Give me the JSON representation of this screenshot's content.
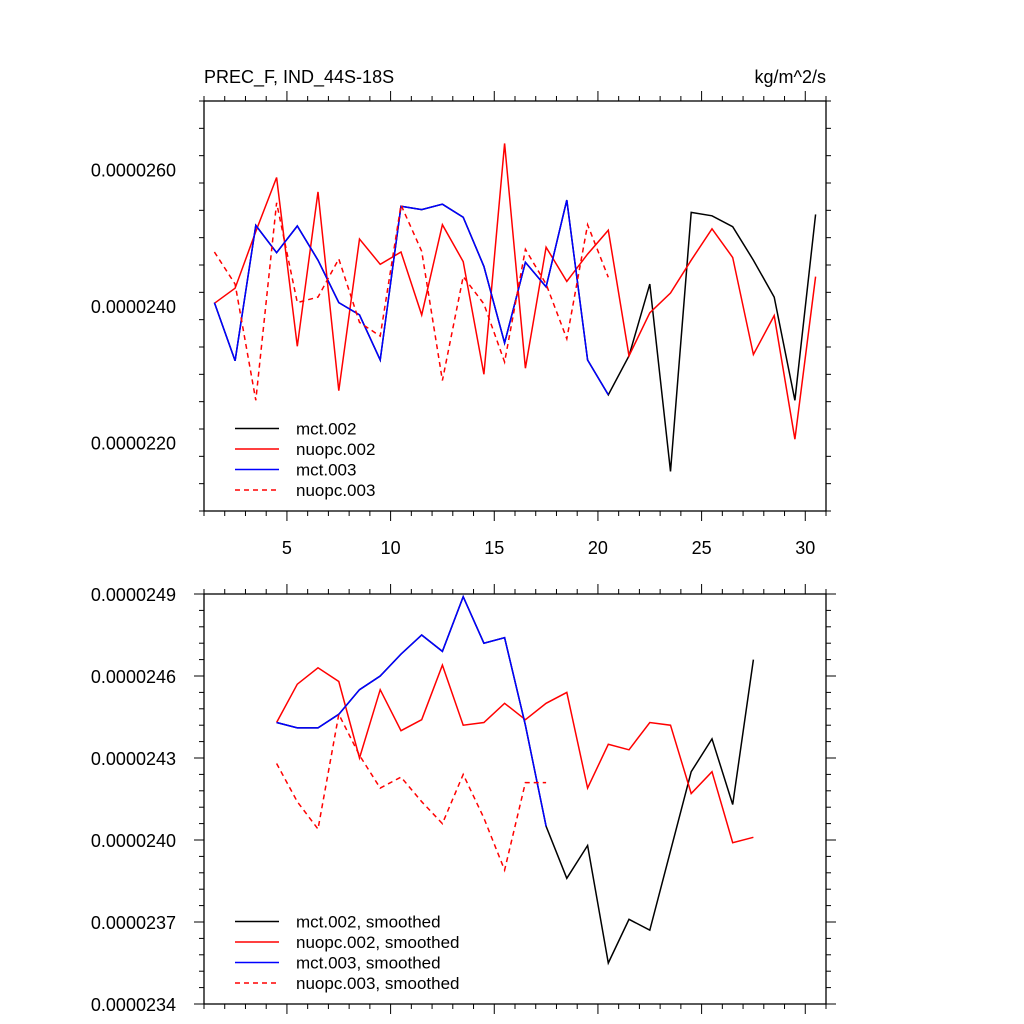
{
  "chart_data": [
    {
      "type": "line",
      "title_left": "PREC_F, IND_44S-18S",
      "title_right": "kg/m^2/s",
      "xlabel": "",
      "ylabel": "",
      "xlim": [
        1,
        31
      ],
      "ylim": [
        2.1e-05,
        2.7e-05
      ],
      "x_ticks": [
        5,
        10,
        15,
        20,
        25,
        30
      ],
      "x_tick_labels": [
        "5",
        "10",
        "15",
        "20",
        "25",
        "30"
      ],
      "y_ticks": [
        2.2e-05,
        2.4e-05,
        2.6e-05
      ],
      "y_tick_labels": [
        "0.0000220",
        "0.0000240",
        "0.0000260"
      ],
      "legend_position": "bottom-left",
      "series": [
        {
          "name": "mct.002",
          "color": "#000000",
          "dash": "solid",
          "x": [
            1.5,
            2.5,
            3.5,
            4.5,
            5.5,
            6.5,
            7.5,
            8.5,
            9.5,
            10.5,
            11.5,
            12.5,
            13.5,
            14.5,
            15.5,
            16.5,
            17.5,
            18.5,
            19.5,
            20.5,
            21.5,
            22.5,
            23.5,
            24.5,
            25.5,
            26.5,
            27.5,
            28.5,
            29.5,
            30.5
          ],
          "values": [
            2.405e-05,
            2.32e-05,
            2.518e-05,
            2.478e-05,
            2.517e-05,
            2.467e-05,
            2.405e-05,
            2.387e-05,
            2.321e-05,
            2.546e-05,
            2.541e-05,
            2.549e-05,
            2.53e-05,
            2.458e-05,
            2.346e-05,
            2.464e-05,
            2.428e-05,
            2.555e-05,
            2.321e-05,
            2.27e-05,
            2.327e-05,
            2.432e-05,
            2.158e-05,
            2.537e-05,
            2.532e-05,
            2.516e-05,
            2.467e-05,
            2.413e-05,
            2.262e-05,
            2.534e-05
          ]
        },
        {
          "name": "nuopc.002",
          "color": "#ff0000",
          "dash": "solid",
          "x": [
            1.5,
            2.5,
            3.5,
            4.5,
            5.5,
            6.5,
            7.5,
            8.5,
            9.5,
            10.5,
            11.5,
            12.5,
            13.5,
            14.5,
            15.5,
            16.5,
            17.5,
            18.5,
            19.5,
            20.5,
            21.5,
            22.5,
            23.5,
            24.5,
            25.5,
            26.5,
            27.5,
            28.5,
            29.5,
            30.5
          ],
          "values": [
            2.404e-05,
            2.426e-05,
            2.509e-05,
            2.588e-05,
            2.341e-05,
            2.567e-05,
            2.276e-05,
            2.498e-05,
            2.461e-05,
            2.479e-05,
            2.387e-05,
            2.519e-05,
            2.465e-05,
            2.3e-05,
            2.638e-05,
            2.309e-05,
            2.486e-05,
            2.436e-05,
            2.476e-05,
            2.511e-05,
            2.327e-05,
            2.39e-05,
            2.419e-05,
            2.467e-05,
            2.513e-05,
            2.471e-05,
            2.329e-05,
            2.386e-05,
            2.205e-05,
            2.443e-05
          ]
        },
        {
          "name": "mct.003",
          "color": "#0000ff",
          "dash": "solid",
          "x": [
            1.5,
            2.5,
            3.5,
            4.5,
            5.5,
            6.5,
            7.5,
            8.5,
            9.5,
            10.5,
            11.5,
            12.5,
            13.5,
            14.5,
            15.5,
            16.5,
            17.5,
            18.5,
            19.5,
            20.5
          ],
          "values": [
            2.405e-05,
            2.32e-05,
            2.518e-05,
            2.478e-05,
            2.517e-05,
            2.467e-05,
            2.405e-05,
            2.387e-05,
            2.321e-05,
            2.546e-05,
            2.541e-05,
            2.549e-05,
            2.53e-05,
            2.458e-05,
            2.346e-05,
            2.464e-05,
            2.428e-05,
            2.555e-05,
            2.321e-05,
            2.27e-05
          ]
        },
        {
          "name": "nuopc.003",
          "color": "#ff0000",
          "dash": "dashed",
          "x": [
            1.5,
            2.5,
            3.5,
            4.5,
            5.5,
            6.5,
            7.5,
            8.5,
            9.5,
            10.5,
            11.5,
            12.5,
            13.5,
            14.5,
            15.5,
            16.5,
            17.5,
            18.5,
            19.5,
            20.5
          ],
          "values": [
            2.479e-05,
            2.432e-05,
            2.262e-05,
            2.551e-05,
            2.405e-05,
            2.413e-05,
            2.469e-05,
            2.376e-05,
            2.356e-05,
            2.548e-05,
            2.48e-05,
            2.291e-05,
            2.443e-05,
            2.403e-05,
            2.318e-05,
            2.483e-05,
            2.432e-05,
            2.352e-05,
            2.519e-05,
            2.442e-05
          ]
        }
      ]
    },
    {
      "type": "line",
      "xlabel": "",
      "ylabel": "",
      "xlim": [
        1,
        31
      ],
      "ylim": [
        2.34e-05,
        2.49e-05
      ],
      "x_ticks": [
        5,
        10,
        15,
        20,
        25,
        30
      ],
      "y_ticks": [
        2.34e-05,
        2.37e-05,
        2.4e-05,
        2.43e-05,
        2.46e-05,
        2.49e-05
      ],
      "y_tick_labels": [
        "0.0000234",
        "0.0000237",
        "0.0000240",
        "0.0000243",
        "0.0000246",
        "0.0000249"
      ],
      "legend_position": "bottom-left",
      "series": [
        {
          "name": "mct.002, smoothed",
          "color": "#000000",
          "dash": "solid",
          "x": [
            4.5,
            5.5,
            6.5,
            7.5,
            8.5,
            9.5,
            10.5,
            11.5,
            12.5,
            13.5,
            14.5,
            15.5,
            16.5,
            17.5,
            18.5,
            19.5,
            20.5,
            21.5,
            22.5,
            23.5,
            24.5,
            25.5,
            26.5,
            27.5
          ],
          "values": [
            2.443e-05,
            2.441e-05,
            2.441e-05,
            2.446e-05,
            2.455e-05,
            2.46e-05,
            2.468e-05,
            2.475e-05,
            2.469e-05,
            2.489e-05,
            2.472e-05,
            2.474e-05,
            2.442e-05,
            2.405e-05,
            2.386e-05,
            2.398e-05,
            2.355e-05,
            2.371e-05,
            2.367e-05,
            2.396e-05,
            2.425e-05,
            2.437e-05,
            2.413e-05,
            2.466e-05
          ]
        },
        {
          "name": "nuopc.002, smoothed",
          "color": "#ff0000",
          "dash": "solid",
          "x": [
            4.5,
            5.5,
            6.5,
            7.5,
            8.5,
            9.5,
            10.5,
            11.5,
            12.5,
            13.5,
            14.5,
            15.5,
            16.5,
            17.5,
            18.5,
            19.5,
            20.5,
            21.5,
            22.5,
            23.5,
            24.5,
            25.5,
            26.5,
            27.5
          ],
          "values": [
            2.443e-05,
            2.457e-05,
            2.463e-05,
            2.458e-05,
            2.43e-05,
            2.455e-05,
            2.44e-05,
            2.444e-05,
            2.464e-05,
            2.442e-05,
            2.443e-05,
            2.45e-05,
            2.444e-05,
            2.45e-05,
            2.454e-05,
            2.419e-05,
            2.435e-05,
            2.433e-05,
            2.443e-05,
            2.442e-05,
            2.417e-05,
            2.425e-05,
            2.399e-05,
            2.401e-05
          ]
        },
        {
          "name": "mct.003, smoothed",
          "color": "#0000ff",
          "dash": "solid",
          "x": [
            4.5,
            5.5,
            6.5,
            7.5,
            8.5,
            9.5,
            10.5,
            11.5,
            12.5,
            13.5,
            14.5,
            15.5,
            16.5,
            17.5
          ],
          "values": [
            2.443e-05,
            2.441e-05,
            2.441e-05,
            2.446e-05,
            2.455e-05,
            2.46e-05,
            2.468e-05,
            2.475e-05,
            2.469e-05,
            2.489e-05,
            2.472e-05,
            2.474e-05,
            2.442e-05,
            2.405e-05
          ]
        },
        {
          "name": "nuopc.003, smoothed",
          "color": "#ff0000",
          "dash": "dashed",
          "x": [
            4.5,
            5.5,
            6.5,
            7.5,
            8.5,
            9.5,
            10.5,
            11.5,
            12.5,
            13.5,
            14.5,
            15.5,
            16.5,
            17.5
          ],
          "values": [
            2.428e-05,
            2.414e-05,
            2.404e-05,
            2.446e-05,
            2.431e-05,
            2.419e-05,
            2.423e-05,
            2.414e-05,
            2.406e-05,
            2.424e-05,
            2.408e-05,
            2.389e-05,
            2.421e-05,
            2.421e-05
          ]
        }
      ]
    }
  ]
}
